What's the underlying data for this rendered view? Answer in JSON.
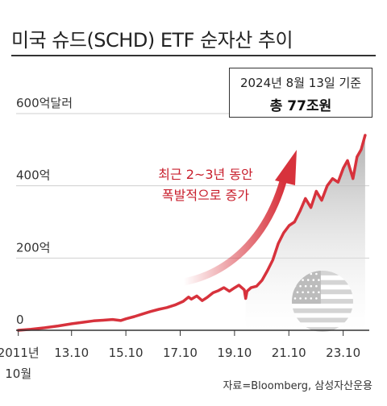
{
  "title": "미국 슈드(SCHD) ETF 순자산 추이",
  "info_box": {
    "date": "2024년 8월 13일 기준",
    "total": "총 77조원"
  },
  "annotation": {
    "line1": "최근 2~3년 동안",
    "line2": "폭발적으로 증가"
  },
  "source": "자료=Bloomberg, 삼성자산운용",
  "colors": {
    "line": "#d7323c",
    "arrow": "#d7323c",
    "annotation_text": "#c81e2c",
    "grid": "#cfcfcf",
    "area_fill": "#b0b0b0",
    "flag_watermark": "#d4d4d4"
  },
  "watermark_icon": "us-flag-icon",
  "chart_data": {
    "type": "line",
    "title": "미국 슈드(SCHD) ETF 순자산 추이",
    "xlabel": "",
    "ylabel": "",
    "ylim": [
      0,
      600
    ],
    "xlim": [
      2011.75,
      2024.75
    ],
    "y_ticks": [
      {
        "value": 0,
        "label": "0"
      },
      {
        "value": 200,
        "label": "200억"
      },
      {
        "value": 400,
        "label": "400억"
      },
      {
        "value": 600,
        "label": "600억달러"
      }
    ],
    "x_ticks": [
      {
        "value": 2011.83,
        "label": "2011년",
        "label2": "10월"
      },
      {
        "value": 2013.79,
        "label": "13.10"
      },
      {
        "value": 2015.79,
        "label": "15.10"
      },
      {
        "value": 2017.79,
        "label": "17.10"
      },
      {
        "value": 2019.79,
        "label": "19.10"
      },
      {
        "value": 2021.79,
        "label": "21.10"
      },
      {
        "value": 2023.79,
        "label": "23.10"
      }
    ],
    "grid": "horizontal",
    "series": [
      {
        "x": [
          2011.83,
          2012.3,
          2012.8,
          2013.3,
          2013.8,
          2014.2,
          2014.6,
          2015.0,
          2015.3,
          2015.6,
          2015.8,
          2016.1,
          2016.4,
          2016.7,
          2017.0,
          2017.3,
          2017.6,
          2017.9,
          2018.1,
          2018.2,
          2018.4,
          2018.6,
          2018.8,
          2019.0,
          2019.2,
          2019.4,
          2019.6,
          2019.8,
          2019.95,
          2020.15,
          2020.2,
          2020.25,
          2020.4,
          2020.6,
          2020.8,
          2021.0,
          2021.2,
          2021.4,
          2021.6,
          2021.8,
          2022.0,
          2022.2,
          2022.4,
          2022.6,
          2022.8,
          2023.0,
          2023.2,
          2023.4,
          2023.6,
          2023.8,
          2023.95,
          2024.15,
          2024.3,
          2024.45,
          2024.6
        ],
        "y": [
          0,
          3,
          7,
          12,
          18,
          22,
          26,
          28,
          30,
          27,
          32,
          38,
          45,
          52,
          58,
          63,
          70,
          80,
          92,
          86,
          95,
          82,
          92,
          104,
          110,
          118,
          108,
          118,
          125,
          112,
          88,
          108,
          118,
          122,
          138,
          165,
          195,
          240,
          270,
          290,
          300,
          330,
          365,
          340,
          385,
          360,
          400,
          420,
          410,
          450,
          470,
          420,
          480,
          500,
          540
        ]
      }
    ]
  }
}
